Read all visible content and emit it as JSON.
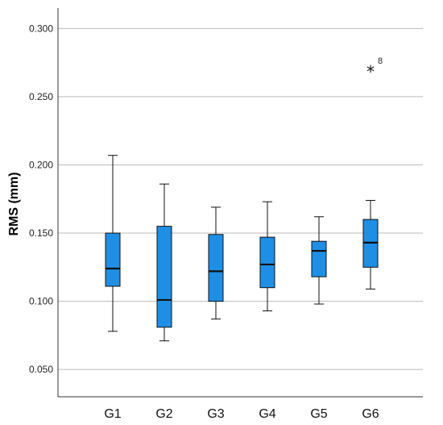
{
  "chart_data": {
    "type": "boxplot",
    "title": "",
    "xlabel": "",
    "ylabel": "RMS (mm)",
    "ylim": [
      0.03,
      0.315
    ],
    "yticks": [
      "0.050",
      "0.100",
      "0.150",
      "0.200",
      "0.250",
      "0.300"
    ],
    "categories": [
      "G1",
      "G2",
      "G3",
      "G4",
      "G5",
      "G6"
    ],
    "boxes": [
      {
        "category": "G1",
        "min": 0.078,
        "q1": 0.111,
        "median": 0.124,
        "q3": 0.15,
        "max": 0.207
      },
      {
        "category": "G2",
        "min": 0.071,
        "q1": 0.081,
        "median": 0.101,
        "q3": 0.155,
        "max": 0.186
      },
      {
        "category": "G3",
        "min": 0.087,
        "q1": 0.1,
        "median": 0.122,
        "q3": 0.149,
        "max": 0.169
      },
      {
        "category": "G4",
        "min": 0.093,
        "q1": 0.11,
        "median": 0.127,
        "q3": 0.147,
        "max": 0.173
      },
      {
        "category": "G5",
        "min": 0.098,
        "q1": 0.118,
        "median": 0.137,
        "q3": 0.144,
        "max": 0.162
      },
      {
        "category": "G6",
        "min": 0.109,
        "q1": 0.125,
        "median": 0.143,
        "q3": 0.16,
        "max": 0.174
      }
    ],
    "outliers": [
      {
        "category": "G6",
        "value": 0.27,
        "marker": "*",
        "label": "8"
      }
    ],
    "grid": true,
    "colors": {
      "box_fill": "#1f8fe5",
      "box_stroke": "#111111",
      "grid": "#bbbbbb",
      "axis": "#333333"
    }
  }
}
